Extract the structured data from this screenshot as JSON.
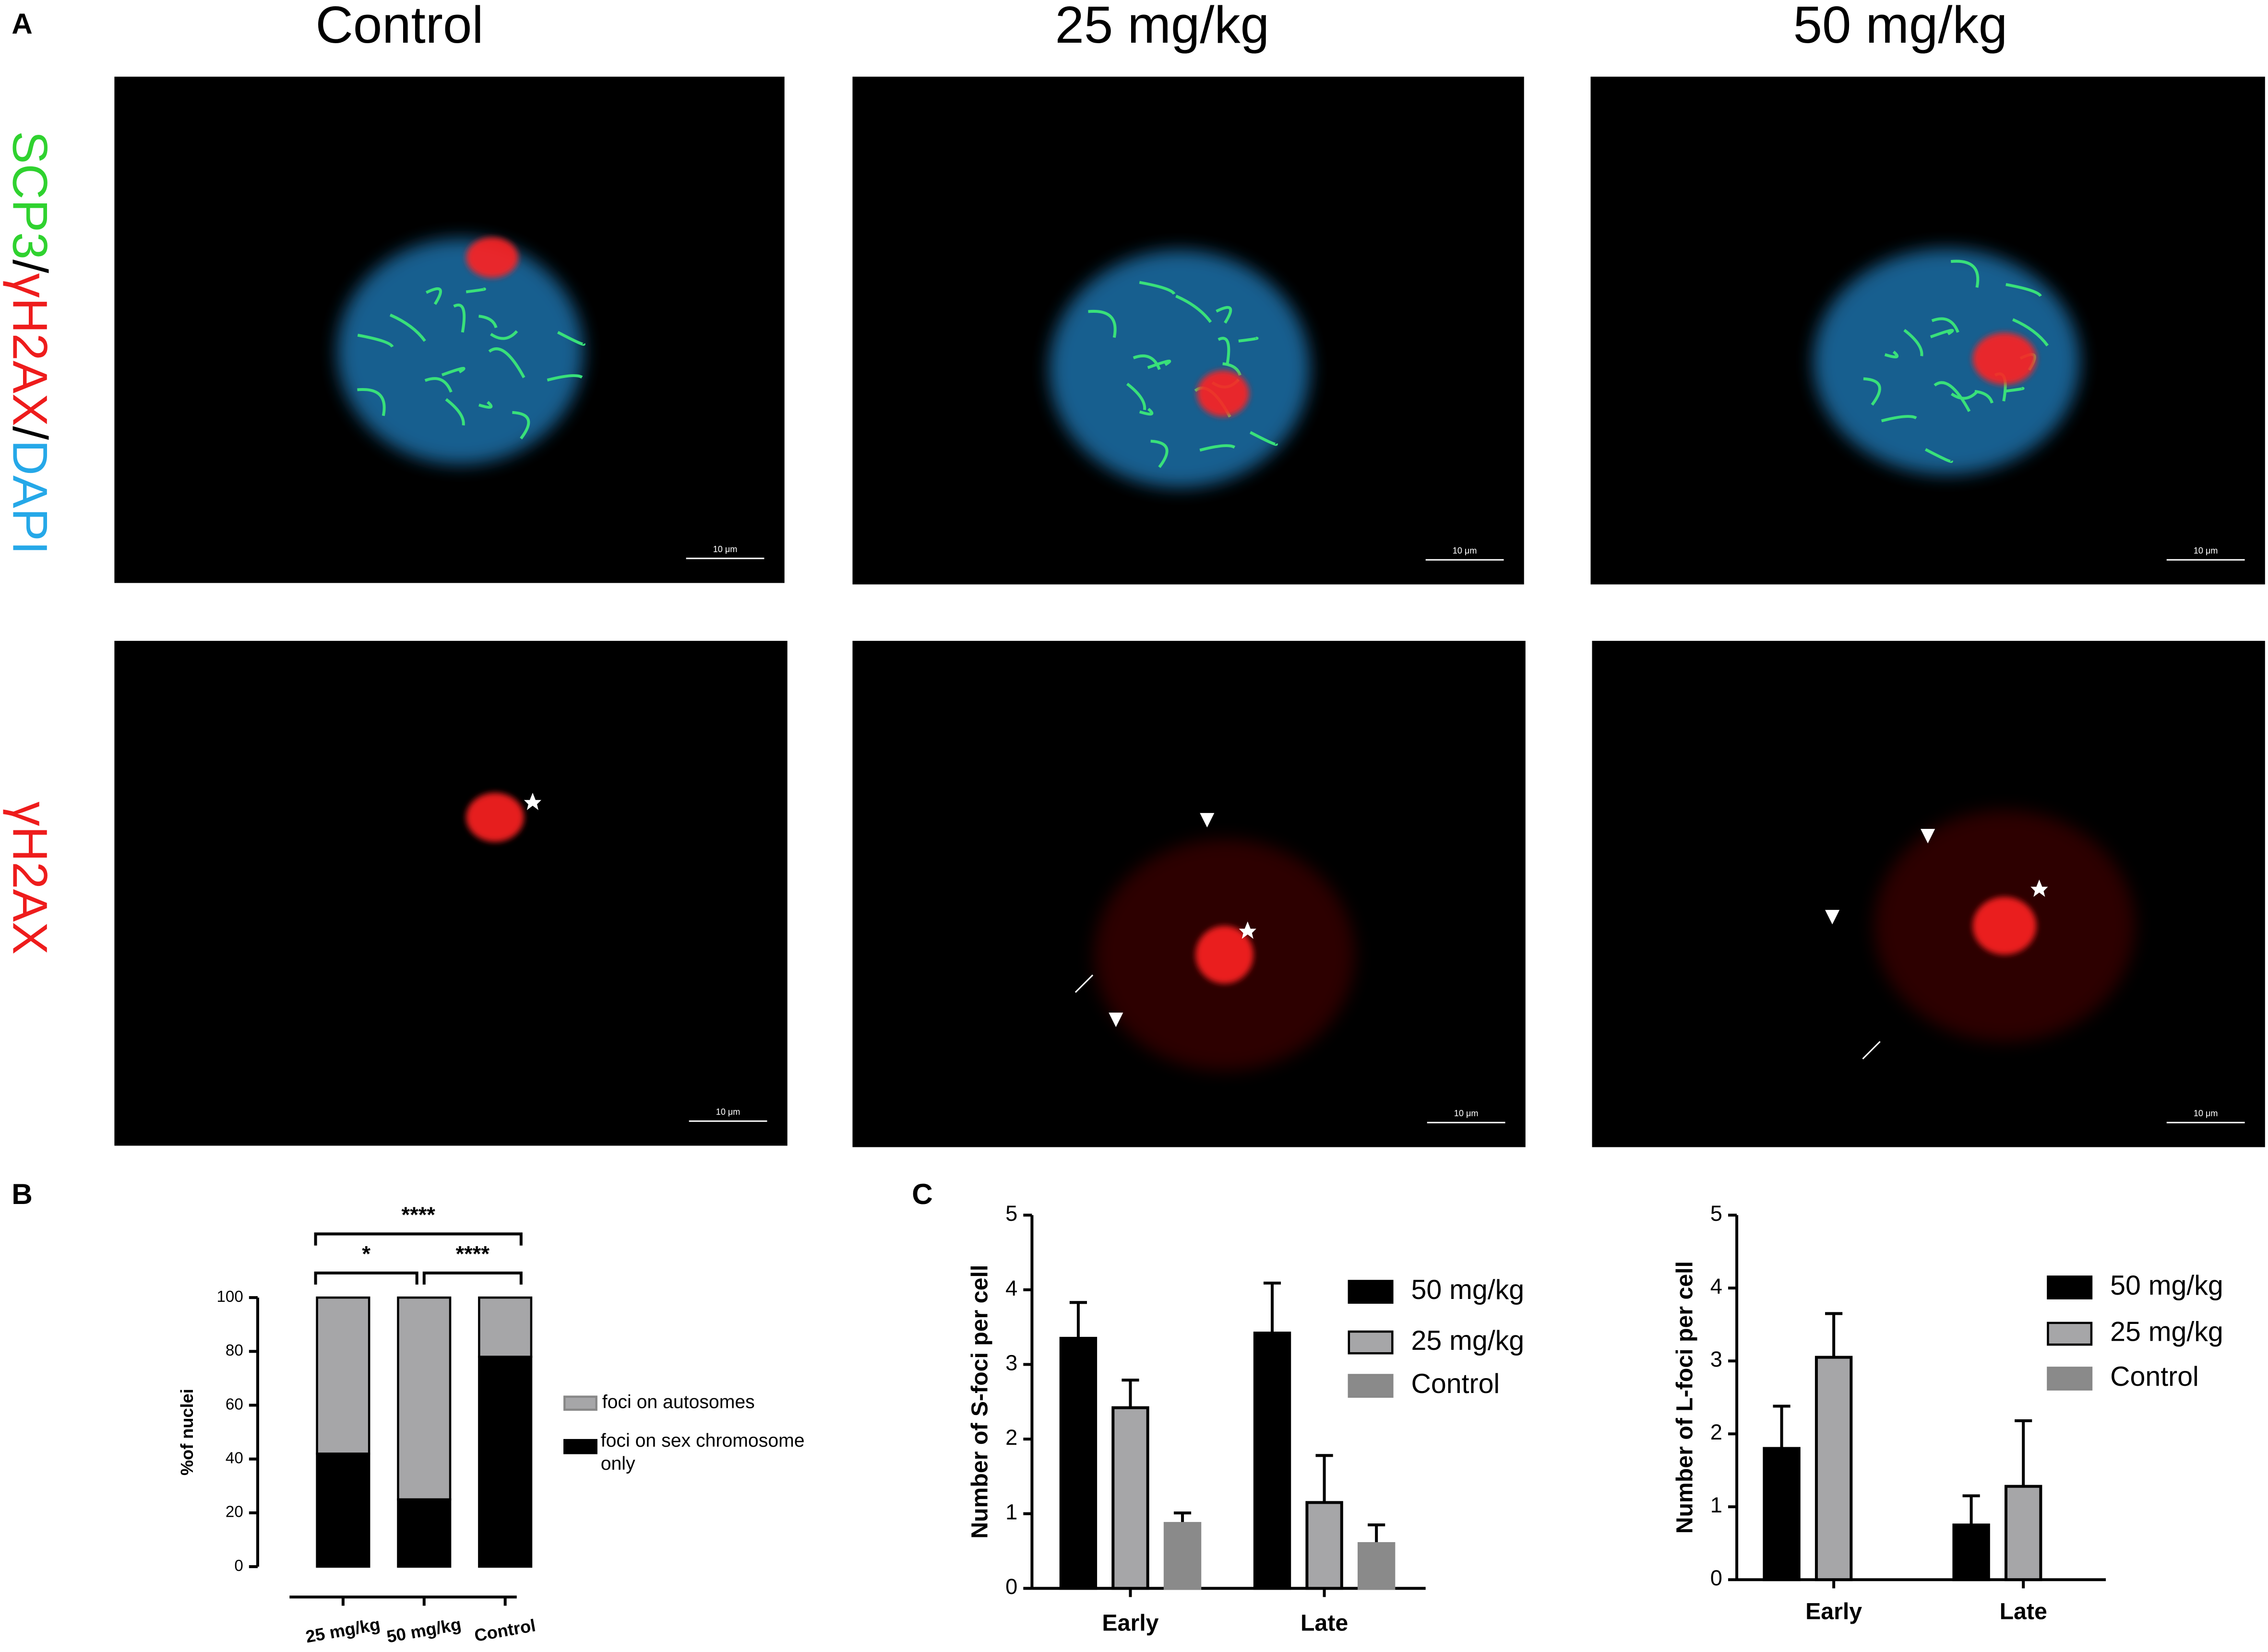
{
  "panel_labels": [
    "A",
    "B",
    "C"
  ],
  "columns": [
    "Control",
    "25 mg/kg",
    "50 mg/kg"
  ],
  "row_labels": [
    [
      "SCP3",
      "/",
      "γH2AX",
      "/",
      "DAPI"
    ],
    [
      "γH2AX"
    ]
  ],
  "scale_bar_label": "10 μm",
  "chart_data": [
    {
      "type": "stacked_bar",
      "ylabel": "%of nuclei",
      "categories": [
        "25 mg/kg",
        "50 mg/kg",
        "Control"
      ],
      "series": [
        {
          "name": "foci on sex chromosome only",
          "color": "#000000",
          "values": [
            42,
            25,
            78
          ]
        },
        {
          "name": "foci on autosomes",
          "color": "#a6a6a8",
          "values": [
            58,
            75,
            22
          ]
        }
      ],
      "ylim": [
        0,
        100
      ],
      "yticks": [
        0,
        20,
        40,
        60,
        80,
        100
      ],
      "annotations": [
        "****",
        "*",
        "****"
      ]
    },
    {
      "type": "bar",
      "ylabel": "Number of S-foci per cell",
      "categories": [
        "Early",
        "Late"
      ],
      "series": [
        {
          "name": "50 mg/kg",
          "color": "#000000",
          "values": [
            3.35,
            3.42
          ],
          "errors": [
            0.48,
            0.67
          ]
        },
        {
          "name": "25 mg/kg",
          "color": "#a6a6a8",
          "values": [
            2.42,
            1.15
          ],
          "errors": [
            0.37,
            0.63
          ]
        },
        {
          "name": "Control",
          "color": "#8a8a8a",
          "values": [
            0.87,
            0.6
          ],
          "errors": [
            0.14,
            0.25
          ]
        }
      ],
      "ylim": [
        0,
        5
      ],
      "yticks": [
        0,
        1,
        2,
        3,
        4,
        5
      ]
    },
    {
      "type": "bar",
      "ylabel": "Number of L-foci per cell",
      "categories": [
        "Early",
        "Late"
      ],
      "series": [
        {
          "name": "50 mg/kg",
          "color": "#000000",
          "values": [
            1.8,
            0.75
          ],
          "errors": [
            0.58,
            0.4
          ]
        },
        {
          "name": "25 mg/kg",
          "color": "#a6a6a8",
          "values": [
            3.05,
            1.28
          ],
          "errors": [
            0.6,
            0.9
          ]
        },
        {
          "name": "Control",
          "color": "#8a8a8a",
          "values": [
            null,
            null
          ],
          "errors": [
            null,
            null
          ]
        }
      ],
      "ylim": [
        0,
        5
      ],
      "yticks": [
        0,
        1,
        2,
        3,
        4,
        5
      ]
    }
  ]
}
